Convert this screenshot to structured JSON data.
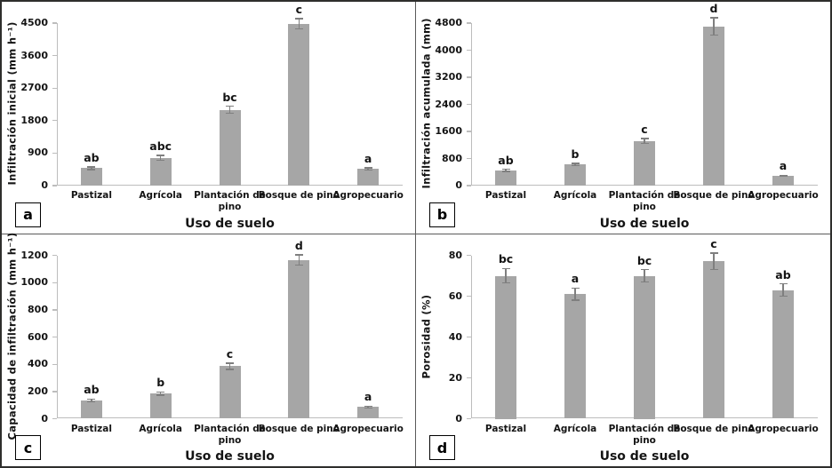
{
  "figure": {
    "panel_letters": [
      "a",
      "b",
      "c",
      "d"
    ],
    "bar_color": "#a6a6a6",
    "error_bar_color": "#7f7f7f",
    "axis_line_color": "#bdbdbd",
    "text_color": "#141414"
  },
  "chart_data": [
    {
      "panel": "a",
      "type": "bar",
      "title": "",
      "ylabel": "Infiltración  inicial  (mm h⁻¹)",
      "xlabel": "Uso de suelo",
      "categories": [
        "Pastizal",
        "Agrícola",
        "Plantación de pino",
        "Bosque de pino",
        "Agropecuario"
      ],
      "values": [
        480,
        770,
        2100,
        4480,
        460
      ],
      "errors": [
        40,
        65,
        100,
        140,
        30
      ],
      "sig_letters": [
        "ab",
        "abc",
        "bc",
        "c",
        "a"
      ],
      "ylim": [
        0,
        4500
      ],
      "yticks": [
        0,
        900,
        1800,
        2700,
        3600,
        4500
      ],
      "grid": false,
      "legend": "none"
    },
    {
      "panel": "b",
      "type": "bar",
      "title": "",
      "ylabel": "Infiltración  acumulada  (mm)",
      "xlabel": "Uso de suelo",
      "categories": [
        "Pastizal",
        "Agrícola",
        "Plantación de pino",
        "Bosque de pino",
        "Agropecuario"
      ],
      "values": [
        455,
        625,
        1320,
        4700,
        290
      ],
      "errors": [
        30,
        35,
        75,
        260,
        18
      ],
      "sig_letters": [
        "ab",
        "b",
        "c",
        "d",
        "a"
      ],
      "ylim": [
        0,
        4800
      ],
      "yticks": [
        0,
        800,
        1600,
        2400,
        3200,
        4000,
        4800
      ],
      "grid": false,
      "legend": "none"
    },
    {
      "panel": "c",
      "type": "bar",
      "title": "",
      "ylabel": "Capacidad de infiltración  (mm h⁻¹)",
      "xlabel": "Uso de suelo",
      "categories": [
        "Pastizal",
        "Agrícola",
        "Plantación de pino",
        "Bosque de pino",
        "Agropecuario"
      ],
      "values": [
        135,
        185,
        385,
        1165,
        85
      ],
      "errors": [
        10,
        12,
        22,
        38,
        7
      ],
      "sig_letters": [
        "ab",
        "b",
        "c",
        "d",
        "a"
      ],
      "ylim": [
        0,
        1200
      ],
      "yticks": [
        0,
        200,
        400,
        600,
        800,
        1000,
        1200
      ],
      "grid": false,
      "legend": "none"
    },
    {
      "panel": "d",
      "type": "bar",
      "title": "",
      "ylabel": "Porosidad  (%)",
      "xlabel": "Uso de suelo",
      "categories": [
        "Pastizal",
        "Agrícola",
        "Plantación de pino",
        "Bosque de pino",
        "Agropecuario"
      ],
      "values": [
        70,
        61,
        70,
        77,
        63
      ],
      "errors": [
        3.5,
        3,
        3,
        4,
        3
      ],
      "sig_letters": [
        "bc",
        "a",
        "bc",
        "c",
        "ab"
      ],
      "ylim": [
        0,
        80
      ],
      "yticks": [
        0,
        20,
        40,
        60,
        80
      ],
      "grid": false,
      "legend": "none"
    }
  ]
}
